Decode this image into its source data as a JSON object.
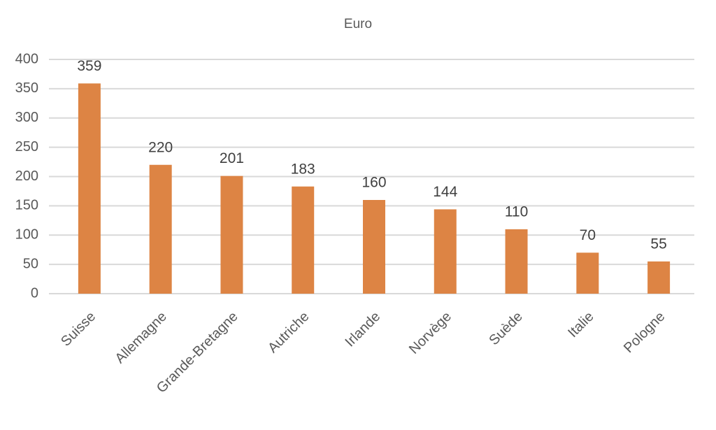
{
  "chart_data": {
    "type": "bar",
    "title": "Euro",
    "categories": [
      "Suisse",
      "Allemagne",
      "Grande-Bretagne",
      "Autriche",
      "Irlande",
      "Norvège",
      "Suède",
      "Italie",
      "Pologne"
    ],
    "values": [
      359,
      220,
      201,
      183,
      160,
      144,
      110,
      70,
      55
    ],
    "color": "#dd8444",
    "ylim": [
      0,
      400
    ],
    "yticks": [
      0,
      50,
      100,
      150,
      200,
      250,
      300,
      350,
      400
    ],
    "grid": true,
    "data_labels": true
  }
}
